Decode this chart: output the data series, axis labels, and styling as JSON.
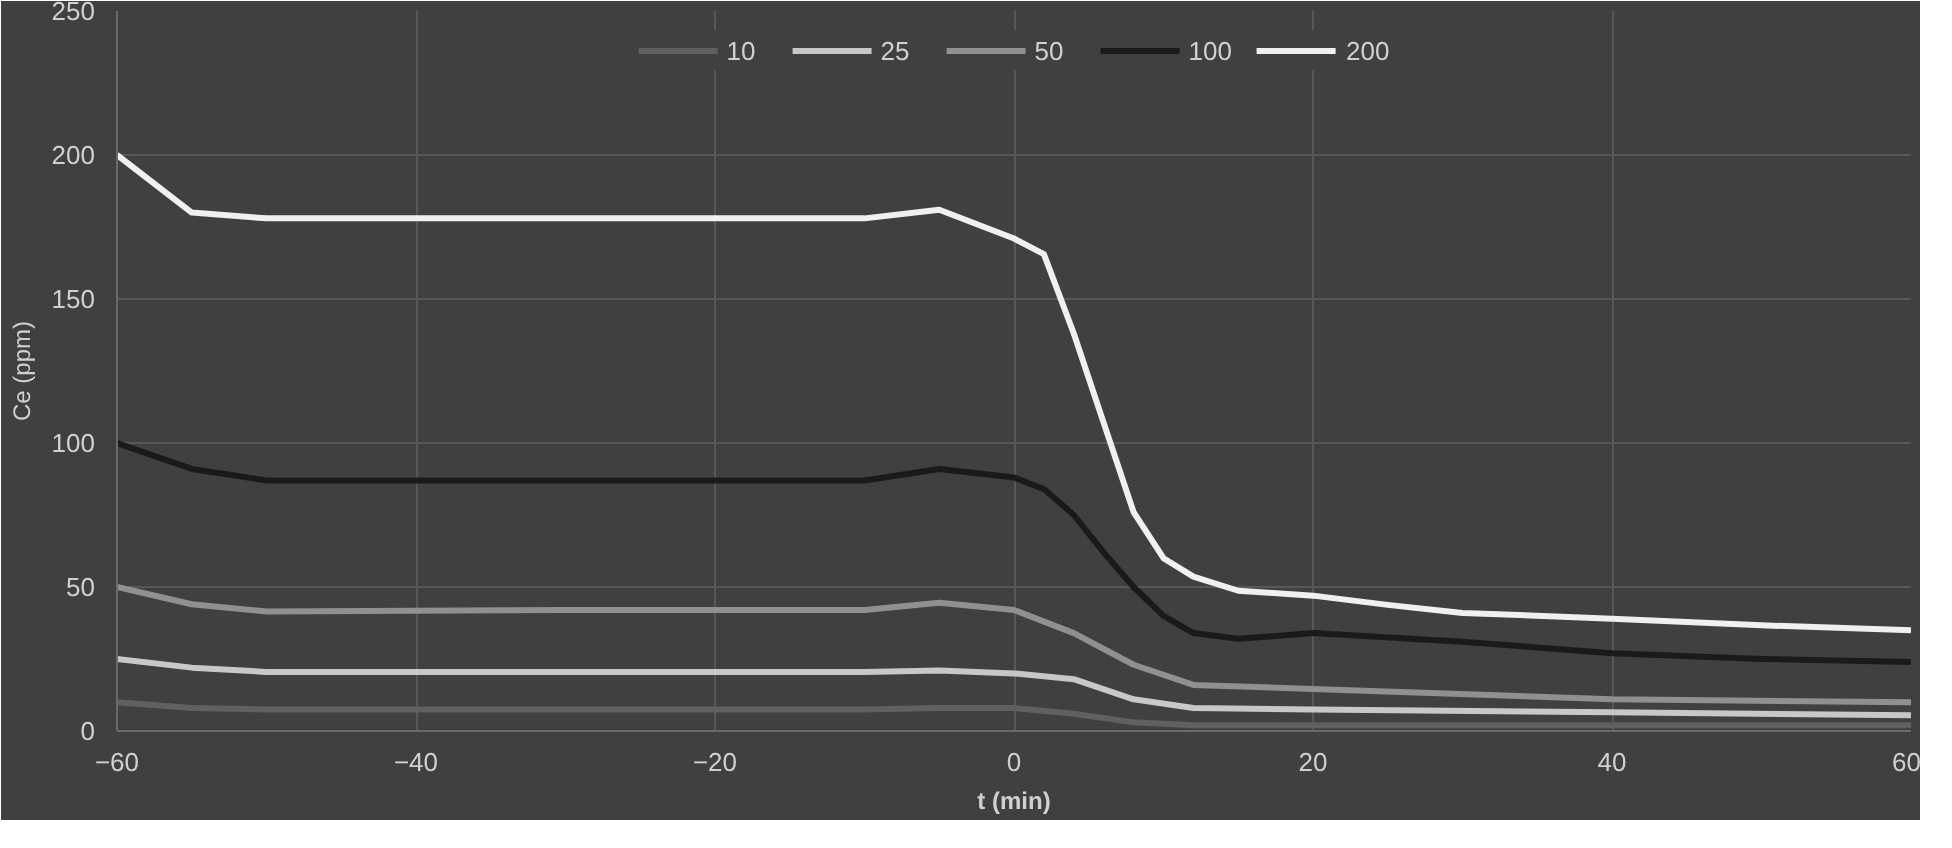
{
  "chart_data": {
    "type": "line",
    "xlabel": "t (min)",
    "ylabel": "Ce (ppm)",
    "xlim": [
      -60,
      60
    ],
    "ylim": [
      0,
      250
    ],
    "xticks": [
      -60,
      -40,
      -20,
      0,
      20,
      40,
      60
    ],
    "yticks": [
      0,
      50,
      100,
      150,
      200,
      250
    ],
    "grid": true,
    "legend": "top",
    "line_style": "solid",
    "marker": "none",
    "series": [
      {
        "name": "10",
        "color": "#606060",
        "x": [
          -60,
          -55,
          -50,
          -30,
          -10,
          -5,
          0,
          4,
          8,
          12,
          20,
          40,
          60
        ],
        "values": [
          10,
          8,
          7.5,
          7.5,
          7.5,
          8,
          8,
          6,
          3,
          2,
          2,
          2,
          2
        ]
      },
      {
        "name": "25",
        "color": "#c8c8c8",
        "x": [
          -60,
          -55,
          -50,
          -30,
          -10,
          -5,
          0,
          4,
          8,
          12,
          20,
          40,
          60
        ],
        "values": [
          25,
          22,
          20.5,
          20.5,
          20.5,
          21,
          20,
          18,
          11,
          8,
          7.5,
          6.5,
          5.5
        ]
      },
      {
        "name": "50",
        "color": "#909090",
        "x": [
          -60,
          -55,
          -50,
          -30,
          -10,
          -5,
          0,
          4,
          8,
          12,
          20,
          40,
          60
        ],
        "values": [
          50,
          44,
          41.5,
          42,
          42,
          44.5,
          42,
          34,
          23,
          16,
          14.6,
          11,
          10
        ]
      },
      {
        "name": "100",
        "color": "#1a1a1a",
        "x": [
          -60,
          -55,
          -50,
          -30,
          -10,
          -5,
          0,
          2,
          4,
          6,
          8,
          10,
          12,
          15,
          20,
          30,
          40,
          50,
          60
        ],
        "values": [
          100,
          91,
          87,
          87,
          87,
          91,
          88,
          84,
          75,
          62,
          50,
          40,
          34,
          32,
          34,
          31,
          27,
          25,
          24
        ]
      },
      {
        "name": "200",
        "color": "#f0f0f0",
        "x": [
          -60,
          -55,
          -50,
          -30,
          -10,
          -5,
          0,
          2,
          4,
          6,
          8,
          10,
          12,
          15,
          20,
          25,
          30,
          40,
          50,
          60
        ],
        "values": [
          200,
          180,
          178,
          178,
          178,
          181,
          171,
          165.6,
          138,
          107,
          76,
          60,
          53.6,
          48.7,
          47,
          43.8,
          41,
          39,
          36.7,
          35
        ]
      }
    ]
  }
}
